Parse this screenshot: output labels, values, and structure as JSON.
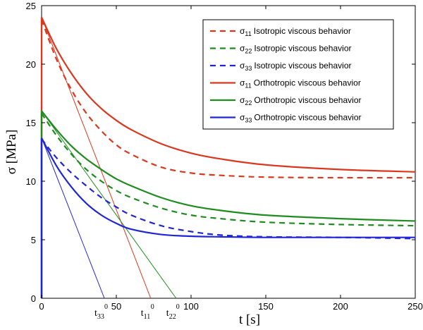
{
  "chart_data": {
    "type": "line",
    "xlabel": "t [s]",
    "ylabel": "σ  [MPa]",
    "xlim": [
      0,
      250
    ],
    "ylim": [
      0,
      25
    ],
    "xticks": [
      0,
      50,
      100,
      150,
      200,
      250
    ],
    "yticks": [
      0,
      5,
      10,
      15,
      20,
      25
    ],
    "grid": false,
    "legend_position": "top-right",
    "colors": {
      "s11": "#d9381e",
      "s22": "#1e8c1e",
      "s33": "#1f26d6"
    },
    "series": [
      {
        "name_main": "σ",
        "name_sub": "11",
        "name_rest": "Isotropic viscous behavior",
        "color": "#d9381e",
        "style": "dashed",
        "x": [
          0,
          10,
          20,
          30,
          40,
          50,
          60,
          80,
          100,
          120,
          150,
          200,
          250
        ],
        "y": [
          23.8,
          20.4,
          17.8,
          15.8,
          14.3,
          13.1,
          12.3,
          11.2,
          10.7,
          10.5,
          10.35,
          10.3,
          10.3
        ]
      },
      {
        "name_main": "σ",
        "name_sub": "22",
        "name_rest": "Isotropic viscous behavior",
        "color": "#1e8c1e",
        "style": "dashed",
        "x": [
          0,
          10,
          20,
          30,
          40,
          50,
          60,
          80,
          100,
          120,
          150,
          200,
          250
        ],
        "y": [
          15.8,
          13.9,
          12.3,
          11.0,
          10.0,
          9.2,
          8.6,
          7.7,
          7.1,
          6.8,
          6.5,
          6.3,
          6.2
        ]
      },
      {
        "name_main": "σ",
        "name_sub": "33",
        "name_rest": "Isotropic viscous behavior",
        "color": "#1f26d6",
        "style": "dashed",
        "x": [
          0,
          10,
          20,
          30,
          40,
          50,
          60,
          80,
          100,
          120,
          150,
          200,
          250
        ],
        "y": [
          13.6,
          12.0,
          10.7,
          9.6,
          8.6,
          7.8,
          7.1,
          6.2,
          5.7,
          5.4,
          5.25,
          5.2,
          5.1
        ]
      },
      {
        "name_main": "σ",
        "name_sub": "11",
        "name_rest": "Orthotropic viscous behavior",
        "color": "#d9381e",
        "style": "solid",
        "x": [
          0,
          10,
          20,
          30,
          40,
          50,
          60,
          80,
          100,
          120,
          150,
          200,
          250
        ],
        "y": [
          24.0,
          21.3,
          19.2,
          17.5,
          16.2,
          15.2,
          14.4,
          13.2,
          12.4,
          11.9,
          11.4,
          11.0,
          10.8
        ]
      },
      {
        "name_main": "σ",
        "name_sub": "22",
        "name_rest": "Orthotropic viscous behavior",
        "color": "#1e8c1e",
        "style": "solid",
        "x": [
          0,
          10,
          20,
          30,
          40,
          50,
          60,
          80,
          100,
          120,
          150,
          200,
          250
        ],
        "y": [
          16.0,
          14.4,
          13.0,
          11.9,
          11.0,
          10.2,
          9.6,
          8.6,
          7.9,
          7.5,
          7.1,
          6.8,
          6.6
        ]
      },
      {
        "name_main": "σ",
        "name_sub": "33",
        "name_rest": "Orthotropic viscous behavior",
        "color": "#1f26d6",
        "style": "solid",
        "x": [
          0,
          10,
          20,
          30,
          40,
          50,
          60,
          80,
          100,
          120,
          150,
          200,
          250
        ],
        "y": [
          13.7,
          11.3,
          9.5,
          8.1,
          7.1,
          6.4,
          5.9,
          5.45,
          5.3,
          5.25,
          5.2,
          5.2,
          5.2
        ]
      }
    ],
    "tangents": [
      {
        "color": "#d9381e",
        "from": [
          0,
          24.0
        ],
        "to": [
          73,
          0
        ]
      },
      {
        "color": "#1e8c1e",
        "from": [
          0,
          16.0
        ],
        "to": [
          90,
          0
        ]
      },
      {
        "color": "#1f26d6",
        "from": [
          0,
          13.7
        ],
        "to": [
          42,
          0
        ]
      }
    ],
    "annotations": [
      {
        "main": "t",
        "sub": "33",
        "sup": "0",
        "x": 42
      },
      {
        "main": "t",
        "sub": "11",
        "sup": "0",
        "x": 73
      },
      {
        "main": "t",
        "sub": "22",
        "sup": "0",
        "x": 90
      }
    ]
  }
}
